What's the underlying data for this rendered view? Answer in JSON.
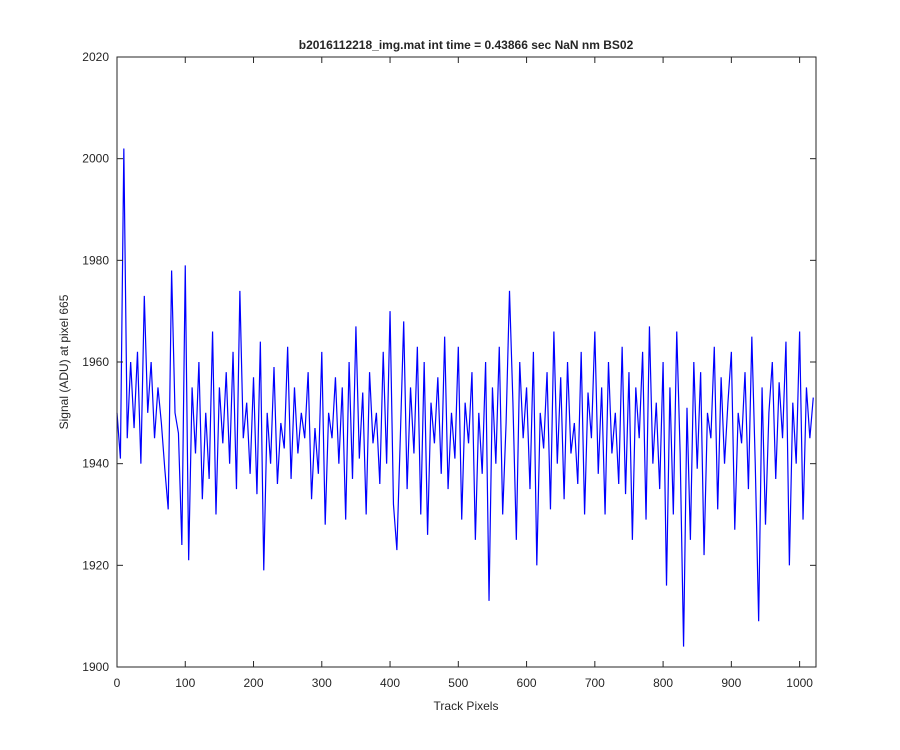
{
  "chart_data": {
    "type": "line",
    "title": "b2016112218_img.mat int time = 0.43866 sec  NaN nm BS02",
    "xlabel": "Track Pixels",
    "ylabel": "Signal (ADU) at pixel 665",
    "color": "#0000ff",
    "x": [
      0,
      5,
      10,
      15,
      20,
      25,
      30,
      35,
      40,
      45,
      50,
      55,
      60,
      65,
      70,
      75,
      80,
      85,
      90,
      95,
      100,
      105,
      110,
      115,
      120,
      125,
      130,
      135,
      140,
      145,
      150,
      155,
      160,
      165,
      170,
      175,
      180,
      185,
      190,
      195,
      200,
      205,
      210,
      215,
      220,
      225,
      230,
      235,
      240,
      245,
      250,
      255,
      260,
      265,
      270,
      275,
      280,
      285,
      290,
      295,
      300,
      305,
      310,
      315,
      320,
      325,
      330,
      335,
      340,
      345,
      350,
      355,
      360,
      365,
      370,
      375,
      380,
      385,
      390,
      395,
      400,
      405,
      410,
      415,
      420,
      425,
      430,
      435,
      440,
      445,
      450,
      455,
      460,
      465,
      470,
      475,
      480,
      485,
      490,
      495,
      500,
      505,
      510,
      515,
      520,
      525,
      530,
      535,
      540,
      545,
      550,
      555,
      560,
      565,
      570,
      575,
      580,
      585,
      590,
      595,
      600,
      605,
      610,
      615,
      620,
      625,
      630,
      635,
      640,
      645,
      650,
      655,
      660,
      665,
      670,
      675,
      680,
      685,
      690,
      695,
      700,
      705,
      710,
      715,
      720,
      725,
      730,
      735,
      740,
      745,
      750,
      755,
      760,
      765,
      770,
      775,
      780,
      785,
      790,
      795,
      800,
      805,
      810,
      815,
      820,
      825,
      830,
      835,
      840,
      845,
      850,
      855,
      860,
      865,
      870,
      875,
      880,
      885,
      890,
      895,
      900,
      905,
      910,
      915,
      920,
      925,
      930,
      935,
      940,
      945,
      950,
      955,
      960,
      965,
      970,
      975,
      980,
      985,
      990,
      995,
      1000,
      1005,
      1010,
      1015,
      1020
    ],
    "values": [
      1950,
      1941,
      2002,
      1945,
      1960,
      1947,
      1962,
      1940,
      1973,
      1950,
      1960,
      1945,
      1955,
      1948,
      1939,
      1931,
      1978,
      1950,
      1946,
      1924,
      1979,
      1921,
      1955,
      1942,
      1960,
      1933,
      1950,
      1937,
      1966,
      1930,
      1955,
      1944,
      1958,
      1940,
      1962,
      1935,
      1974,
      1945,
      1952,
      1938,
      1957,
      1934,
      1964,
      1919,
      1950,
      1940,
      1959,
      1936,
      1948,
      1943,
      1963,
      1937,
      1955,
      1942,
      1950,
      1945,
      1958,
      1933,
      1947,
      1938,
      1962,
      1928,
      1950,
      1945,
      1957,
      1940,
      1955,
      1929,
      1960,
      1937,
      1967,
      1941,
      1954,
      1930,
      1958,
      1944,
      1950,
      1936,
      1962,
      1940,
      1970,
      1932,
      1923,
      1945,
      1968,
      1935,
      1955,
      1942,
      1963,
      1930,
      1960,
      1926,
      1952,
      1944,
      1957,
      1938,
      1965,
      1935,
      1950,
      1941,
      1963,
      1929,
      1952,
      1944,
      1958,
      1925,
      1950,
      1938,
      1960,
      1913,
      1955,
      1940,
      1963,
      1930,
      1948,
      1974,
      1952,
      1925,
      1960,
      1945,
      1955,
      1935,
      1962,
      1920,
      1950,
      1943,
      1958,
      1931,
      1966,
      1940,
      1957,
      1933,
      1960,
      1942,
      1948,
      1936,
      1962,
      1930,
      1954,
      1945,
      1966,
      1938,
      1955,
      1930,
      1960,
      1942,
      1950,
      1936,
      1963,
      1934,
      1958,
      1925,
      1955,
      1945,
      1962,
      1929,
      1967,
      1940,
      1952,
      1935,
      1960,
      1916,
      1955,
      1930,
      1966,
      1942,
      1904,
      1951,
      1925,
      1960,
      1939,
      1958,
      1922,
      1950,
      1945,
      1963,
      1931,
      1957,
      1940,
      1952,
      1962,
      1927,
      1950,
      1944,
      1958,
      1935,
      1965,
      1940,
      1909,
      1955,
      1928,
      1950,
      1960,
      1937,
      1956,
      1945,
      1964,
      1920,
      1952,
      1940,
      1966,
      1929,
      1955,
      1945,
      1953
    ],
    "xlim": [
      0,
      1024
    ],
    "ylim": [
      1900,
      2020
    ],
    "xticks": [
      0,
      100,
      200,
      300,
      400,
      500,
      600,
      700,
      800,
      900,
      1000
    ],
    "yticks": [
      1900,
      1920,
      1940,
      1960,
      1980,
      2000,
      2020
    ],
    "grid": false
  }
}
